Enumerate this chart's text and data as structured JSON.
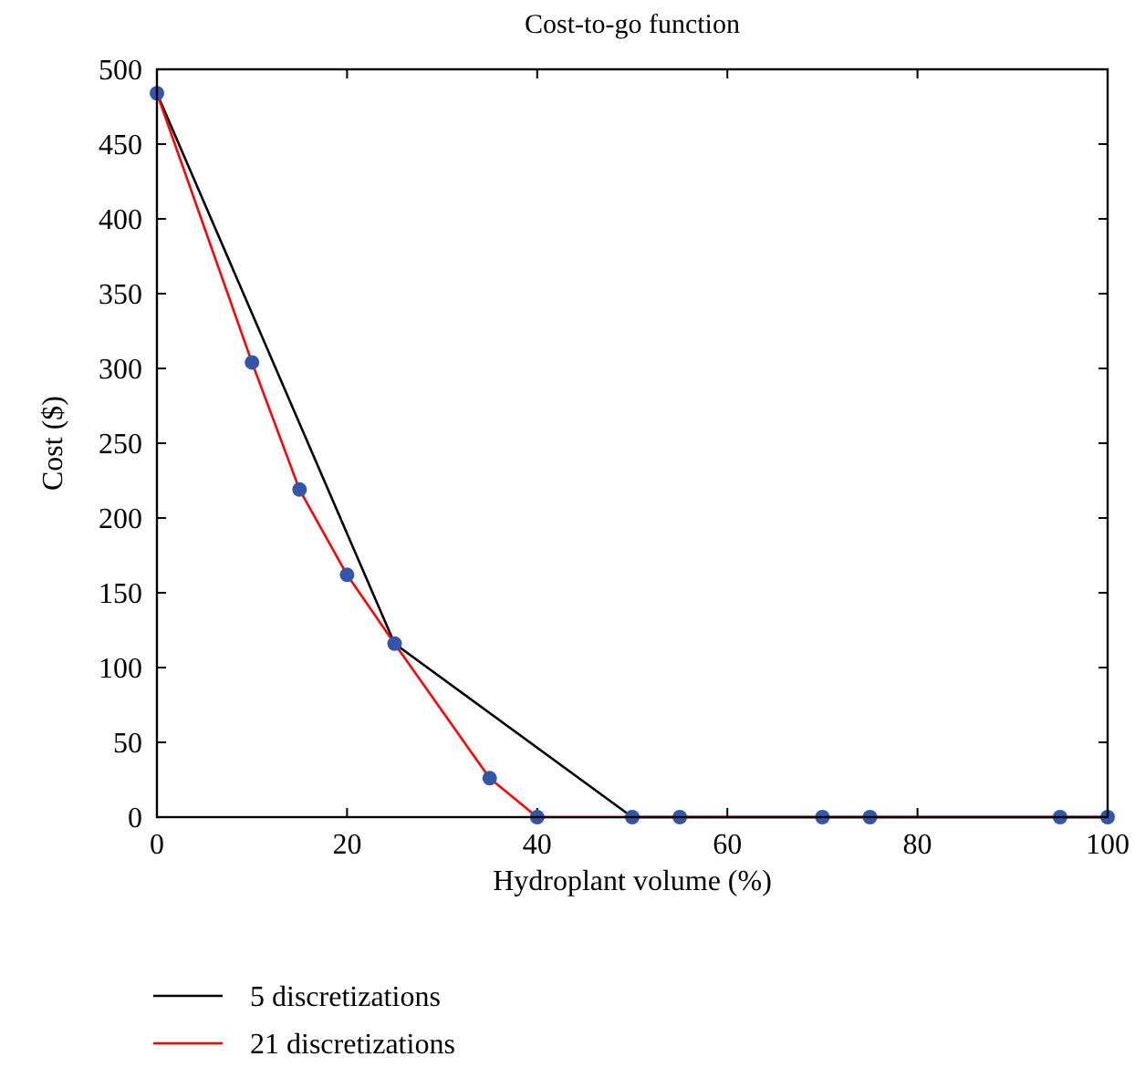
{
  "chart_data": {
    "type": "line",
    "title": "Cost-to-go function",
    "xlabel": "Hydroplant volume (%)",
    "ylabel": "Cost ($)",
    "xlim": [
      0,
      100
    ],
    "xticks": [
      0,
      20,
      40,
      60,
      80,
      100
    ],
    "ylim": [
      0,
      500
    ],
    "yticks": [
      0,
      50,
      100,
      150,
      200,
      250,
      300,
      350,
      400,
      450,
      500
    ],
    "grid": false,
    "legend": "bottom left",
    "series": [
      {
        "name": "5 discretizations",
        "color": "#000000",
        "x": [
          0,
          25,
          50,
          100
        ],
        "values": [
          484,
          116,
          0,
          0
        ]
      },
      {
        "name": "21 discretizations",
        "color": "#ff0000",
        "x": [
          0,
          10,
          15,
          20,
          25,
          35,
          40,
          100
        ],
        "values": [
          484,
          304,
          219,
          162,
          116,
          26,
          0,
          0
        ]
      },
      {
        "type": "scatter",
        "color": "#3355aa",
        "marker": "circle",
        "x": [
          0,
          10,
          15,
          20,
          25,
          35,
          40,
          50,
          55,
          70,
          75,
          95,
          100
        ],
        "values": [
          484,
          304,
          219,
          162,
          116,
          26,
          0,
          0,
          0,
          0,
          0,
          0,
          0
        ]
      }
    ]
  }
}
